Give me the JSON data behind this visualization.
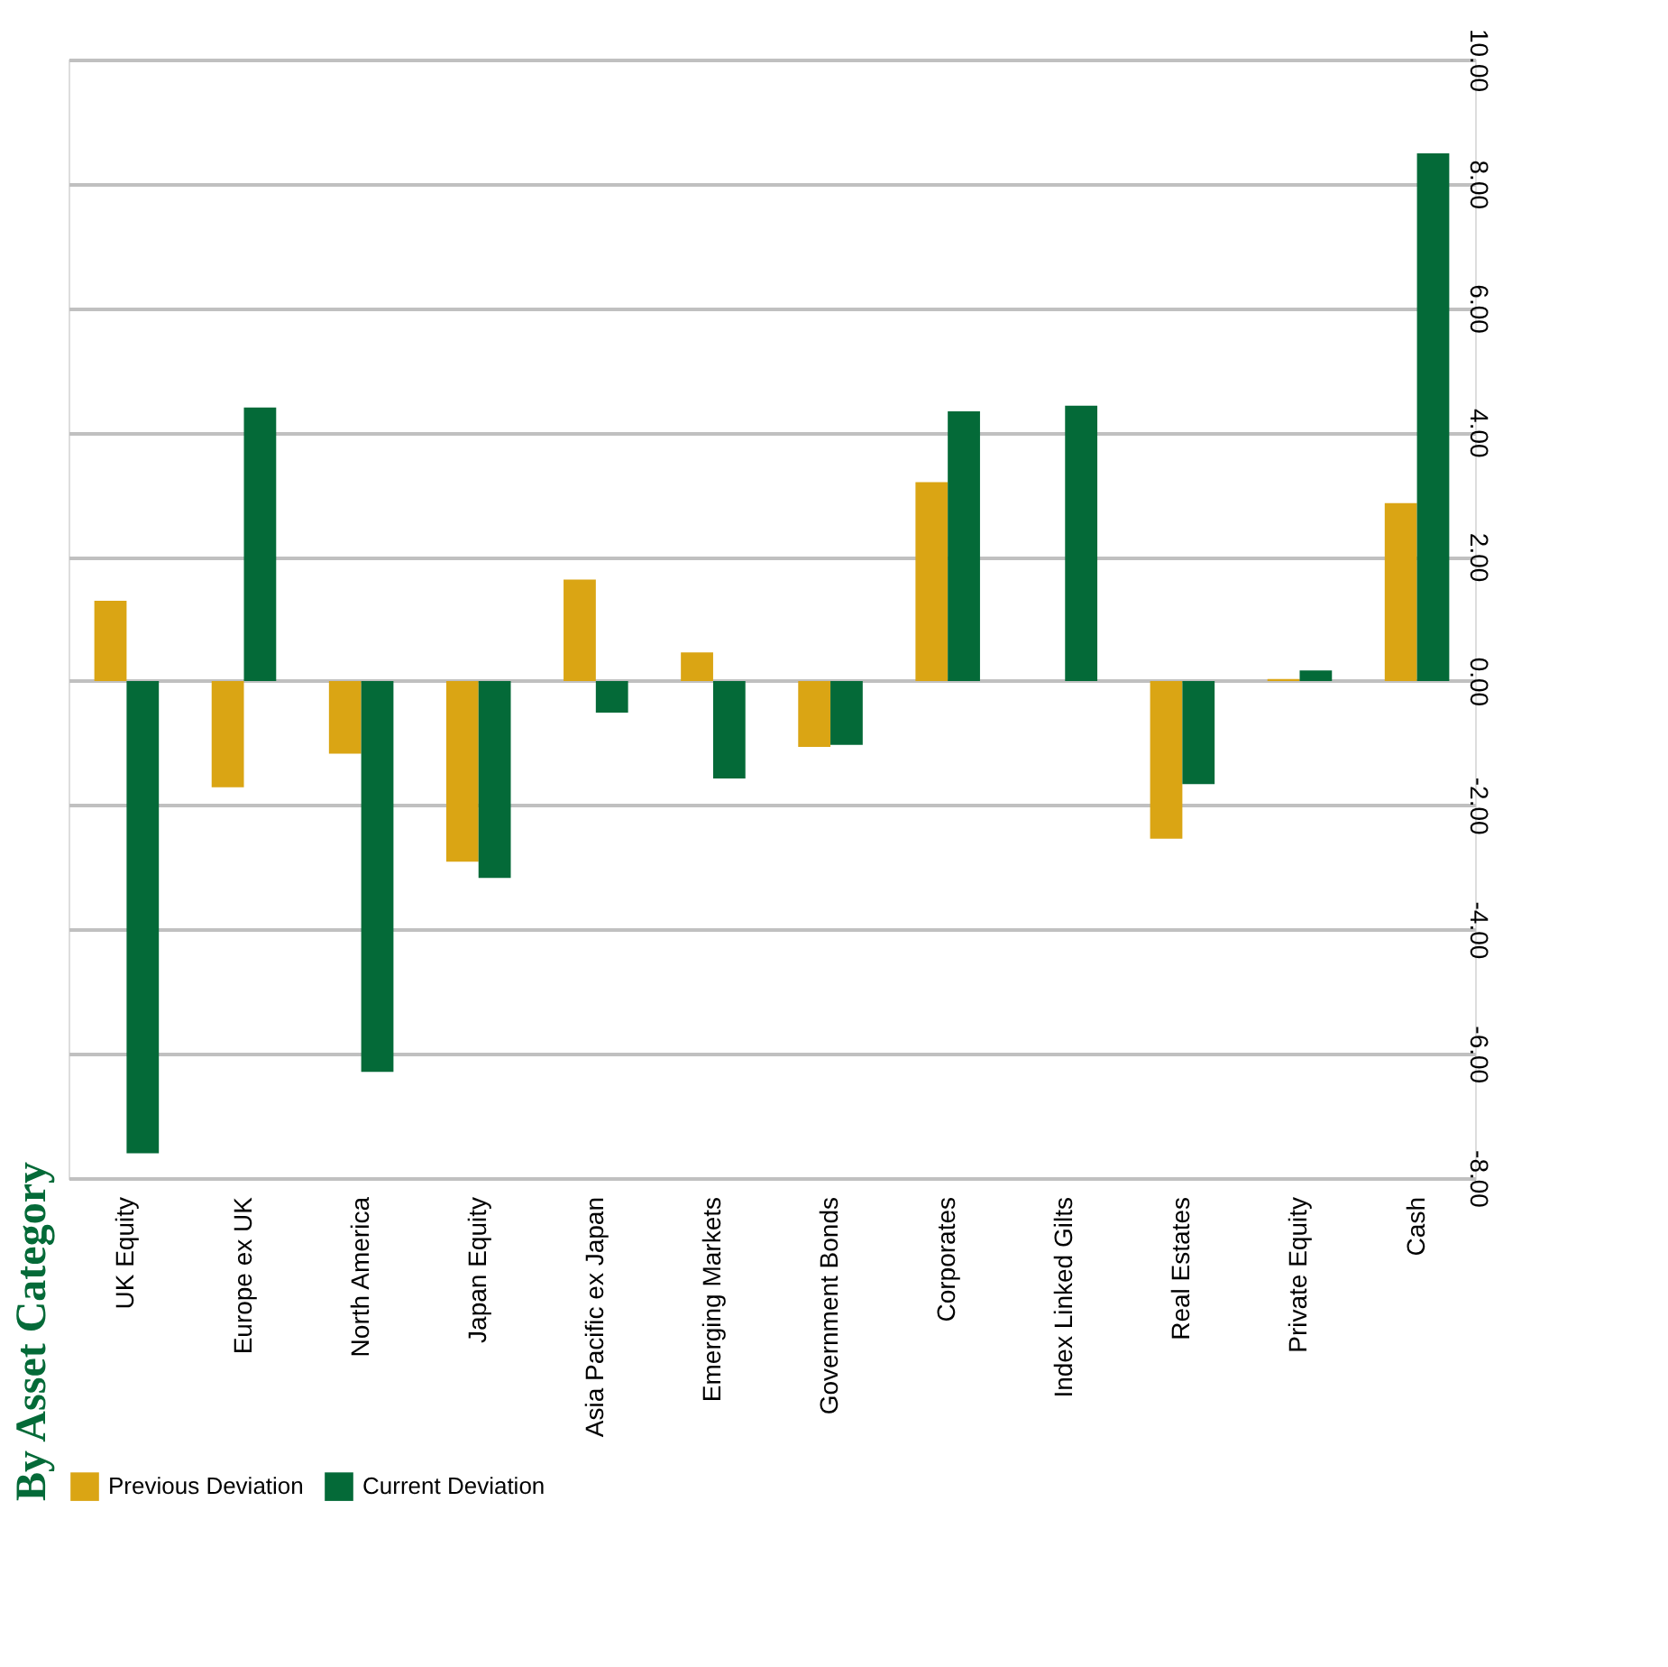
{
  "chart_data": {
    "type": "bar",
    "title": "By Asset Category",
    "categories": [
      "UK Equity",
      "Europe ex UK",
      "North America",
      "Japan Equity",
      "Asia Pacific ex Japan",
      "Emerging Markets",
      "Government Bonds",
      "Corporates",
      "Index Linked Gilts",
      "Real Estates",
      "Private Equity",
      "Cash"
    ],
    "series": [
      {
        "name": "Previous Deviation",
        "color": "#daa514",
        "values": [
          1.29,
          -1.71,
          -1.17,
          -2.91,
          1.63,
          0.46,
          -1.06,
          3.2,
          0,
          -2.54,
          0.03,
          2.86
        ]
      },
      {
        "name": "Current  Deviation",
        "color": "#046a38",
        "values": [
          -7.6,
          4.4,
          -6.29,
          -3.17,
          -0.51,
          -1.57,
          -1.03,
          4.34,
          4.43,
          -1.66,
          0.17,
          8.49
        ]
      }
    ],
    "ylim": [
      -8,
      10
    ],
    "yticks": [
      {
        "value": -8,
        "label": "-8.00"
      },
      {
        "value": -6,
        "label": "-6.00"
      },
      {
        "value": -4,
        "label": "-4.00"
      },
      {
        "value": -2,
        "label": "-2.00"
      },
      {
        "value": 0,
        "label": "0.00"
      },
      {
        "value": 2,
        "label": "2.00"
      },
      {
        "value": 4,
        "label": "4.00"
      },
      {
        "value": 6,
        "label": "6.00"
      },
      {
        "value": 8,
        "label": "8.00"
      },
      {
        "value": 10,
        "label": "10.00"
      }
    ],
    "grid": "y",
    "legend": "bottom"
  }
}
